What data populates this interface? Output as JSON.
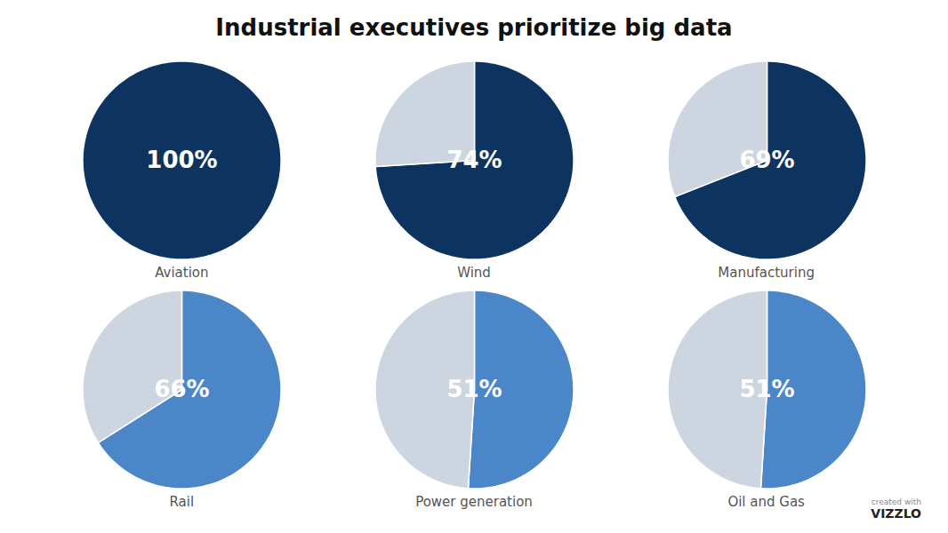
{
  "title": "Industrial executives prioritize big data",
  "annotations": [
    "created with",
    "VIZZLO"
  ],
  "chart_data": [
    {
      "type": "pie",
      "title": "Aviation",
      "values": [
        100
      ],
      "value_labels": [
        "100%"
      ],
      "colors": [
        "#0d3461"
      ]
    },
    {
      "type": "pie",
      "title": "Wind",
      "values": [
        74,
        26
      ],
      "value_labels": [
        "74%",
        null
      ],
      "colors": [
        "#0d3461",
        "#cdd5e0"
      ]
    },
    {
      "type": "pie",
      "title": "Manufacturing",
      "values": [
        69,
        31
      ],
      "value_labels": [
        "69%",
        null
      ],
      "colors": [
        "#0d3461",
        "#cdd5e0"
      ]
    },
    {
      "type": "pie",
      "title": "Rail",
      "values": [
        66,
        34
      ],
      "value_labels": [
        "66%",
        null
      ],
      "colors": [
        "#4a86c8",
        "#cdd5e0"
      ]
    },
    {
      "type": "pie",
      "title": "Power generation",
      "values": [
        51,
        49
      ],
      "value_labels": [
        "51%",
        null
      ],
      "colors": [
        "#4a86c8",
        "#cdd5e0"
      ]
    },
    {
      "type": "pie",
      "title": "Oil and Gas",
      "values": [
        51,
        49
      ],
      "value_labels": [
        "51%",
        null
      ],
      "colors": [
        "#4a86c8",
        "#cdd5e0"
      ]
    }
  ]
}
